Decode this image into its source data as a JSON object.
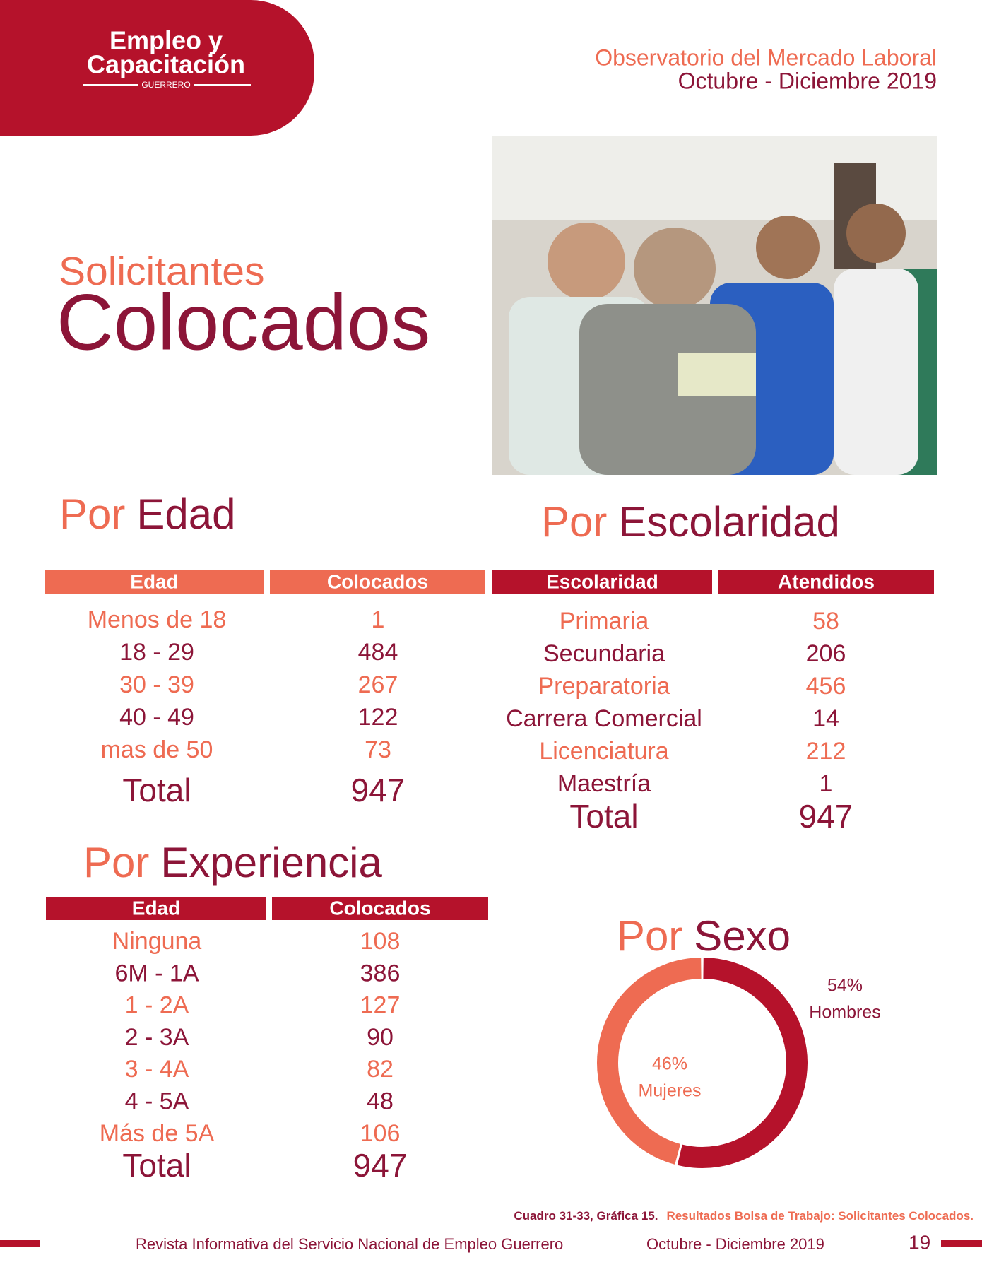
{
  "header": {
    "logo": [
      "Empleo y",
      "Capacitación",
      "GUERRERO"
    ],
    "observatory": "Observatorio del Mercado Laboral",
    "period": "Octubre - Diciembre 2019"
  },
  "title": {
    "line1": "Solicitantes",
    "line2": "Colocados"
  },
  "edad": {
    "heading": [
      "Por",
      "Edad"
    ],
    "headers": [
      "Edad",
      "Colocados"
    ],
    "rows": [
      [
        "Menos de 18",
        1
      ],
      [
        "18 - 29",
        484
      ],
      [
        "30 - 39",
        267
      ],
      [
        "40 - 49",
        122
      ],
      [
        "mas de 50",
        73
      ]
    ],
    "total": [
      "Total",
      947
    ]
  },
  "escolaridad": {
    "heading": [
      "Por",
      "Escolaridad"
    ],
    "headers": [
      "Escolaridad",
      "Atendidos"
    ],
    "rows": [
      [
        "Primaria",
        58
      ],
      [
        "Secundaria",
        206
      ],
      [
        "Preparatoria",
        456
      ],
      [
        "Carrera Comercial",
        14
      ],
      [
        "Licenciatura",
        212
      ],
      [
        "Maestría",
        1
      ]
    ],
    "total": [
      "Total",
      947
    ]
  },
  "experiencia": {
    "heading": [
      "Por",
      "Experiencia"
    ],
    "headers": [
      "Edad",
      "Colocados"
    ],
    "rows": [
      [
        "Ninguna",
        108
      ],
      [
        "6M - 1A",
        386
      ],
      [
        "1 - 2A",
        127
      ],
      [
        "2 - 3A",
        90
      ],
      [
        "3 - 4A",
        82
      ],
      [
        "4 - 5A",
        48
      ],
      [
        "Más de 5A",
        106
      ]
    ],
    "total": [
      "Total",
      947
    ]
  },
  "chart_data": {
    "type": "pie",
    "title": [
      "Por",
      "Sexo"
    ],
    "categories": [
      "Hombres",
      "Mujeres"
    ],
    "values": [
      54,
      46
    ],
    "value_labels": [
      "54%",
      "46%"
    ],
    "colors": [
      "#b5122b",
      "#ee6b52"
    ]
  },
  "caption": [
    "Cuadro 31-33,  Gráfica 15.",
    "Resultados Bolsa de Trabajo: Solicitantes Colocados."
  ],
  "footer": {
    "magazine": "Revista Informativa del Servicio Nacional de Empleo Guerrero",
    "period": "Octubre - Diciembre 2019",
    "page": "19"
  }
}
